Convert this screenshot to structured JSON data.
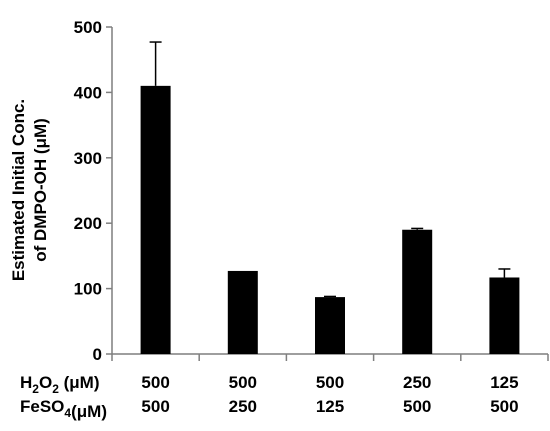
{
  "chart_data": {
    "type": "bar",
    "title": "",
    "ylabel_line1": "Estimated Initial Conc.",
    "ylabel_line2": "of DMPO-OH (μM)",
    "ylim": [
      0,
      500
    ],
    "yticks": [
      "0",
      "100",
      "200",
      "300",
      "400",
      "500"
    ],
    "ytick_values": [
      0,
      100,
      200,
      300,
      400,
      500
    ],
    "values": [
      410,
      127,
      87,
      190,
      117
    ],
    "errors": [
      67,
      0,
      1,
      2,
      13
    ],
    "bar_color": "#000000",
    "grid": false,
    "category_rows": [
      {
        "label_main": "H",
        "label_sub": "2",
        "label_mid": "O",
        "label_sub2": "2",
        "label_unit": " (μM)",
        "values": [
          "500",
          "500",
          "500",
          "250",
          "125"
        ]
      },
      {
        "label_main": "FeSO",
        "label_sub": "4",
        "label_mid": "",
        "label_sub2": "",
        "label_unit": "(μM)",
        "values": [
          "500",
          "250",
          "125",
          "500",
          "500"
        ]
      }
    ]
  }
}
